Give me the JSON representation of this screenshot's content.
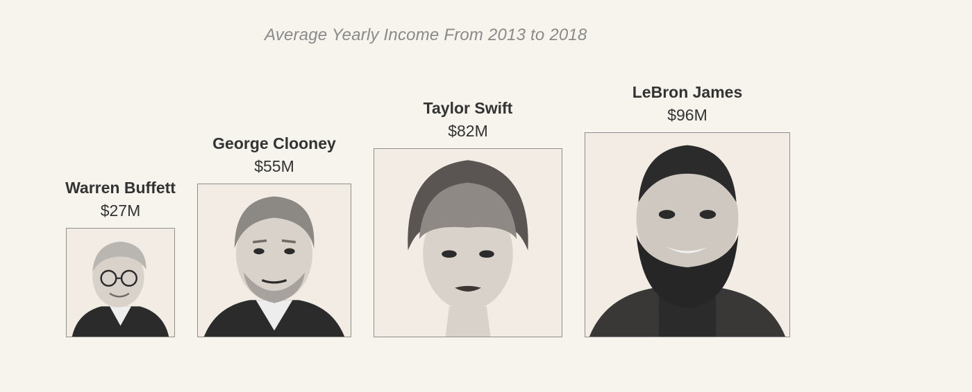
{
  "chart_data": {
    "type": "bar",
    "title": "Average Yearly Income From 2013 to 2018",
    "unit": "$M",
    "categories": [
      "Warren Buffett",
      "George Clooney",
      "Taylor Swift",
      "LeBron James"
    ],
    "values": [
      27,
      55,
      82,
      96
    ],
    "value_labels": [
      "$27M",
      "$55M",
      "$82M",
      "$96M"
    ],
    "mark_style": "portrait squares scaled by value",
    "grid": false,
    "legend": "none"
  },
  "colors": {
    "background": "#f7f3ed",
    "frame_border": "#8f8f8f",
    "title": "#8a8a8a",
    "label": "#333333"
  },
  "icons": [
    "warren-buffett-portrait",
    "george-clooney-portrait",
    "taylor-swift-portrait",
    "lebron-james-portrait"
  ]
}
